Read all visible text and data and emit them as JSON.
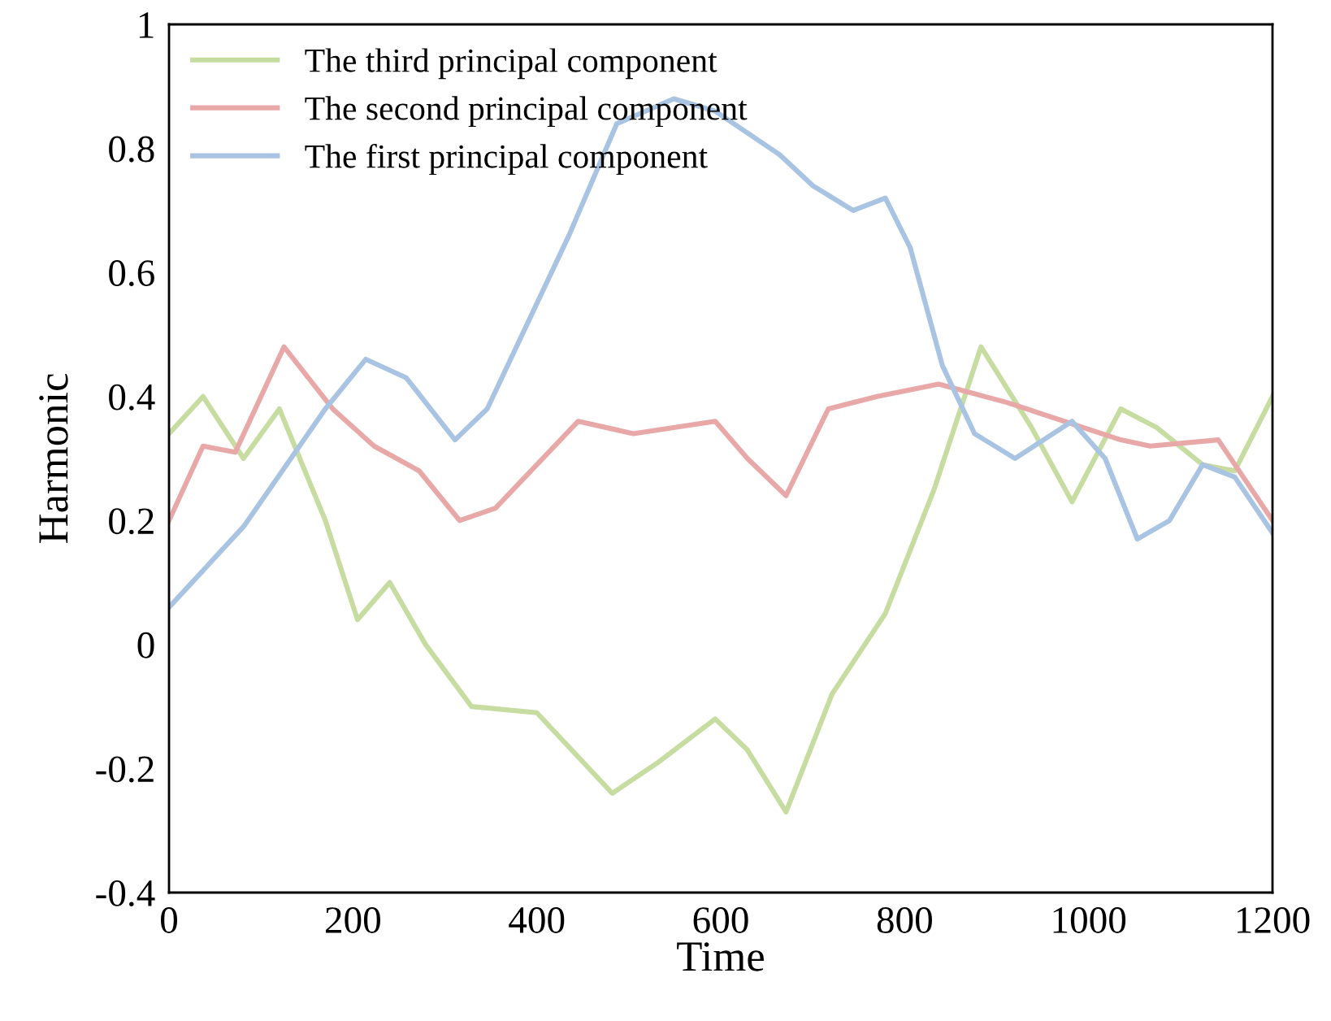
{
  "chart_data": {
    "type": "line",
    "xlabel": "Time",
    "ylabel": "Harmonic",
    "xlim": [
      0,
      1200
    ],
    "xticks": [
      0,
      200,
      400,
      600,
      800,
      1000,
      1200
    ],
    "ylim": [
      -0.4,
      1
    ],
    "yticks": [
      -0.4,
      -0.2,
      0,
      0.2,
      0.4,
      0.6,
      0.8,
      1
    ],
    "grid": false,
    "legend": "top left",
    "marker": "none",
    "line_style": "solid",
    "series": [
      {
        "name": "The third principal component",
        "color": "#c6dca0",
        "x": [
          0,
          37,
          81,
          120,
          170,
          205,
          240,
          279,
          329,
          400,
          482,
          532,
          594,
          629,
          671,
          721,
          779,
          832,
          883,
          938,
          982,
          1035,
          1074,
          1124,
          1159,
          1200
        ],
        "values": [
          0.34,
          0.4,
          0.3,
          0.38,
          0.2,
          0.04,
          0.1,
          0.0,
          -0.1,
          -0.11,
          -0.24,
          -0.19,
          -0.12,
          -0.17,
          -0.27,
          -0.08,
          0.05,
          0.25,
          0.48,
          0.35,
          0.23,
          0.38,
          0.35,
          0.29,
          0.28,
          0.4
        ]
      },
      {
        "name": "The second principal component",
        "color": "#e8a8a8",
        "x": [
          0,
          37,
          72,
          125,
          178,
          223,
          272,
          316,
          355,
          445,
          505,
          594,
          629,
          671,
          717,
          770,
          837,
          912,
          1035,
          1067,
          1141,
          1200
        ],
        "values": [
          0.2,
          0.32,
          0.31,
          0.48,
          0.38,
          0.32,
          0.28,
          0.2,
          0.22,
          0.36,
          0.34,
          0.36,
          0.3,
          0.24,
          0.38,
          0.4,
          0.42,
          0.39,
          0.33,
          0.32,
          0.33,
          0.2
        ]
      },
      {
        "name": "The first principal component",
        "color": "#a9c3e3",
        "x": [
          0,
          81,
          170,
          214,
          258,
          311,
          346,
          435,
          487,
          549,
          594,
          664,
          700,
          744,
          779,
          806,
          841,
          876,
          920,
          982,
          1018,
          1053,
          1088,
          1124,
          1159,
          1200
        ],
        "values": [
          0.06,
          0.19,
          0.38,
          0.46,
          0.43,
          0.33,
          0.38,
          0.66,
          0.84,
          0.88,
          0.86,
          0.79,
          0.74,
          0.7,
          0.72,
          0.64,
          0.45,
          0.34,
          0.3,
          0.36,
          0.3,
          0.17,
          0.2,
          0.29,
          0.27,
          0.18
        ]
      }
    ]
  }
}
